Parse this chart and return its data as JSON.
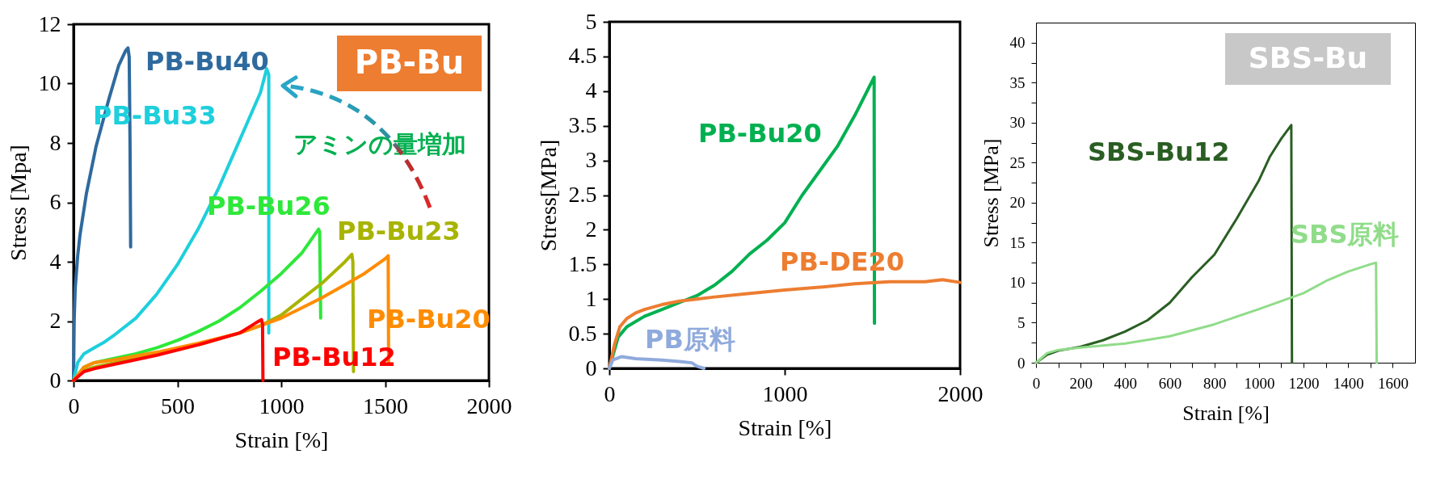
{
  "chart_data": [
    {
      "type": "line",
      "xlabel": "Strain [%]",
      "ylabel": "Stress [Mpa]",
      "xlim": [
        0,
        2000
      ],
      "ylim": [
        0,
        12
      ],
      "xticks": [
        0,
        500,
        1000,
        1500,
        2000
      ],
      "yticks": [
        0,
        2,
        4,
        6,
        8,
        10,
        12
      ],
      "grid": false,
      "series": [
        {
          "name": "PB-Bu40",
          "color": "#2f6a9e",
          "x": [
            0,
            3,
            8,
            20,
            31,
            62,
            109,
            171,
            217,
            250,
            262,
            268,
            272,
            275
          ],
          "values": [
            0,
            2,
            3.1,
            4.2,
            4.9,
            6.3,
            7.9,
            9.5,
            10.6,
            11.1,
            11.2,
            10.9,
            8,
            4.5
          ]
        },
        {
          "name": "PB-Bu33",
          "color": "#1ecfdc",
          "x": [
            0,
            20,
            50,
            100,
            150,
            200,
            300,
            400,
            500,
            600,
            700,
            800,
            900,
            930,
            940,
            940
          ],
          "values": [
            0,
            0.6,
            0.9,
            1.1,
            1.3,
            1.55,
            2.1,
            2.9,
            3.9,
            5.1,
            6.5,
            8.1,
            9.7,
            10.5,
            10.3,
            1.6
          ]
        },
        {
          "name": "PB-Bu26",
          "color": "#2ee83a",
          "x": [
            0,
            50,
            100,
            200,
            300,
            400,
            500,
            600,
            700,
            800,
            900,
            1000,
            1100,
            1180,
            1185,
            1190
          ],
          "values": [
            0,
            0.45,
            0.6,
            0.75,
            0.9,
            1.1,
            1.35,
            1.65,
            2,
            2.45,
            3,
            3.6,
            4.3,
            5.1,
            5,
            2.1
          ]
        },
        {
          "name": "PB-Bu23",
          "color": "#a8b400",
          "x": [
            0,
            50,
            100,
            200,
            400,
            600,
            800,
            900,
            1000,
            1100,
            1200,
            1300,
            1340,
            1345,
            1348
          ],
          "values": [
            0,
            0.35,
            0.45,
            0.6,
            0.9,
            1.2,
            1.6,
            1.85,
            2.2,
            2.75,
            3.3,
            3.95,
            4.25,
            4,
            0.3
          ]
        },
        {
          "name": "PB-Bu20",
          "color": "#ff8c00",
          "x": [
            0,
            50,
            100,
            200,
            400,
            600,
            800,
            900,
            1000,
            1100,
            1200,
            1300,
            1400,
            1500,
            1515,
            1517
          ],
          "values": [
            0,
            0.45,
            0.6,
            0.7,
            0.95,
            1.25,
            1.6,
            1.85,
            2.1,
            2.45,
            2.8,
            3.2,
            3.6,
            4.1,
            4.2,
            0.6
          ]
        },
        {
          "name": "PB-Bu12",
          "color": "#ff0000",
          "x": [
            0,
            50,
            100,
            200,
            400,
            600,
            800,
            880,
            905,
            910,
            912
          ],
          "values": [
            0,
            0.3,
            0.4,
            0.55,
            0.85,
            1.2,
            1.6,
            1.95,
            2.05,
            1.9,
            0
          ]
        }
      ],
      "annotations": [
        "PB-Bu",
        "アミンの量増加"
      ]
    },
    {
      "type": "line",
      "xlabel": "Strain [%]",
      "ylabel": "Stress[MPa]",
      "xlim": [
        0,
        2000
      ],
      "ylim": [
        0,
        5
      ],
      "xticks": [
        0,
        1000,
        2000
      ],
      "yticks": [
        0,
        0.5,
        1,
        1.5,
        2,
        2.5,
        3,
        3.5,
        4,
        4.5,
        5
      ],
      "grid": false,
      "series": [
        {
          "name": "PB-Bu20",
          "color": "#00b050",
          "x": [
            0,
            50,
            100,
            200,
            300,
            400,
            500,
            600,
            700,
            800,
            900,
            1000,
            1100,
            1200,
            1300,
            1400,
            1480,
            1510,
            1512
          ],
          "values": [
            0,
            0.45,
            0.6,
            0.75,
            0.85,
            0.95,
            1.05,
            1.2,
            1.4,
            1.65,
            1.85,
            2.1,
            2.5,
            2.85,
            3.2,
            3.65,
            4.05,
            4.2,
            0.65
          ]
        },
        {
          "name": "PB-DE20",
          "color": "#ed7d31",
          "x": [
            0,
            30,
            60,
            100,
            150,
            200,
            300,
            400,
            500,
            600,
            800,
            1000,
            1200,
            1400,
            1600,
            1800,
            1900,
            2000
          ],
          "values": [
            0,
            0.35,
            0.6,
            0.72,
            0.8,
            0.85,
            0.92,
            0.97,
            1,
            1.03,
            1.08,
            1.13,
            1.17,
            1.22,
            1.25,
            1.25,
            1.28,
            1.24
          ]
        },
        {
          "name": "PB原料",
          "color": "#8faadc",
          "x": [
            0,
            20,
            70,
            150,
            300,
            400,
            470,
            500,
            540
          ],
          "values": [
            0,
            0.12,
            0.17,
            0.14,
            0.12,
            0.1,
            0.08,
            0.03,
            0
          ]
        }
      ]
    },
    {
      "type": "line",
      "xlabel": "Strain [%]",
      "ylabel": "Stress [MPa]",
      "xlim": [
        0,
        1700
      ],
      "ylim": [
        0,
        42.5
      ],
      "xticks": [
        0,
        {
          "value": 100,
          "label": null
        },
        200,
        {
          "value": 300,
          "label": null
        },
        400,
        {
          "value": 500,
          "label": null
        },
        600,
        {
          "value": 700,
          "label": null
        },
        800,
        {
          "value": 900,
          "label": null
        },
        1000,
        {
          "value": 1100,
          "label": null
        },
        1200,
        {
          "value": 1300,
          "label": null
        },
        1400,
        {
          "value": 1500,
          "label": null
        },
        1600
      ],
      "yticks": [
        0,
        {
          "value": 2.5,
          "label": null
        },
        5,
        {
          "value": 7.5,
          "label": null
        },
        10,
        {
          "value": 12.5,
          "label": null
        },
        15,
        {
          "value": 17.5,
          "label": null
        },
        20,
        {
          "value": 22.5,
          "label": null
        },
        25,
        {
          "value": 27.5,
          "label": null
        },
        30,
        {
          "value": 32.5,
          "label": null
        },
        35,
        {
          "value": 37.5,
          "label": null
        },
        40
      ],
      "grid": false,
      "series": [
        {
          "name": "SBS-Bu12",
          "color": "#2a5e23",
          "x": [
            0,
            50,
            100,
            200,
            300,
            400,
            500,
            600,
            700,
            800,
            900,
            1000,
            1050,
            1100,
            1145,
            1148
          ],
          "values": [
            0,
            1,
            1.5,
            2,
            2.8,
            3.9,
            5.3,
            7.5,
            10.7,
            13.5,
            18,
            22.8,
            25.8,
            28,
            29.7,
            0
          ]
        },
        {
          "name": "SBS原料",
          "color": "#90dc8a",
          "x": [
            0,
            50,
            100,
            200,
            400,
            600,
            800,
            1000,
            1200,
            1300,
            1400,
            1500,
            1525,
            1528
          ],
          "values": [
            0,
            1.2,
            1.6,
            1.9,
            2.4,
            3.3,
            4.8,
            6.7,
            8.7,
            10.2,
            11.4,
            12.3,
            12.5,
            0
          ]
        }
      ],
      "annotations": [
        "SBS-Bu"
      ]
    }
  ]
}
